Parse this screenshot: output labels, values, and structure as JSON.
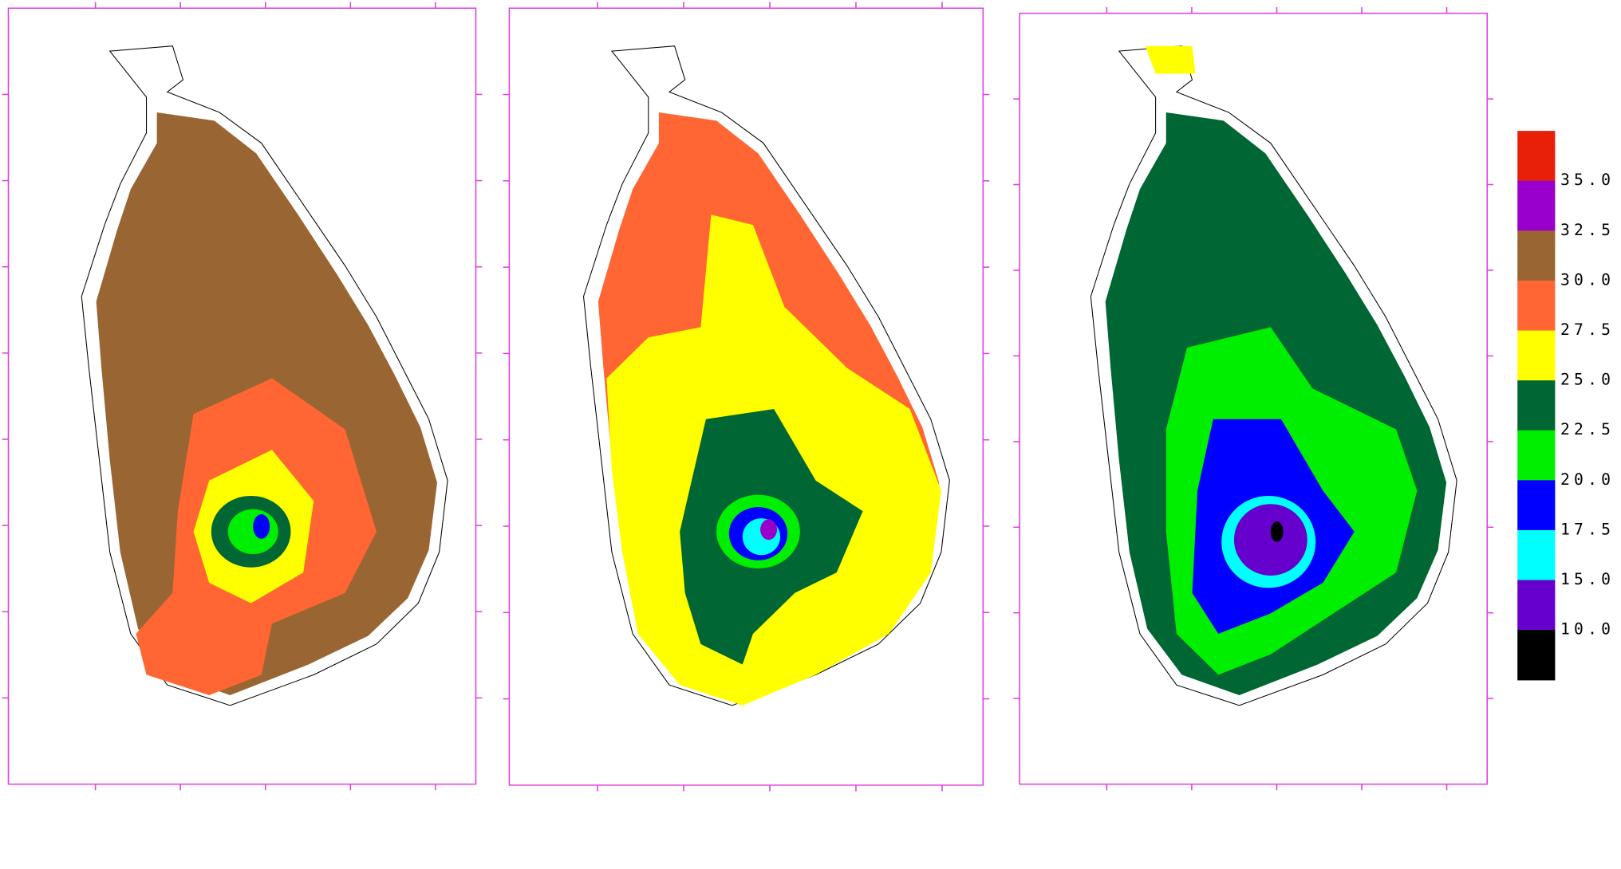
{
  "legend": {
    "colors": [
      "#e8200a",
      "#9900cc",
      "#996633",
      "#ff6633",
      "#ffff00",
      "#006633",
      "#00ee00",
      "#0000ff",
      "#00ffff",
      "#6600cc",
      "#000000"
    ],
    "labels": [
      "35.0",
      "32.5",
      "30.0",
      "27.5",
      "25.0",
      "22.5",
      "20.0",
      "17.5",
      "15.0",
      "10.0"
    ]
  }
}
